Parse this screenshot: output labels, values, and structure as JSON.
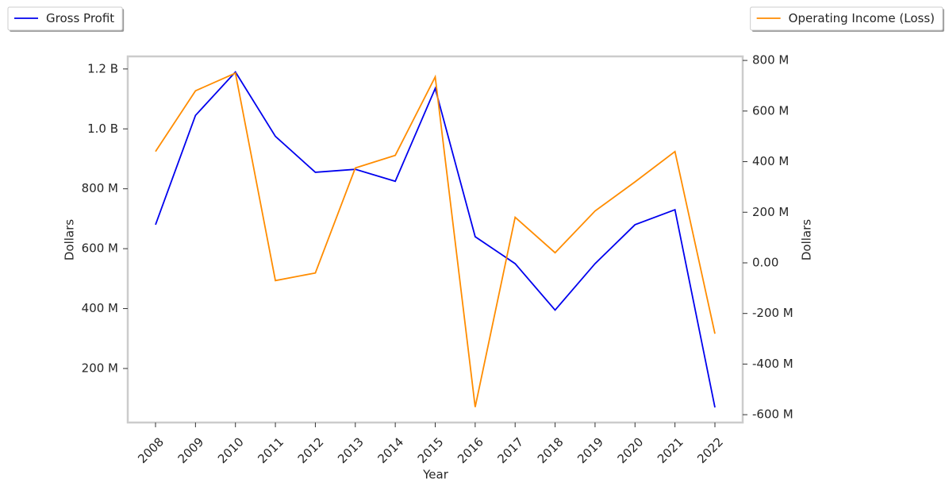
{
  "chart_data": {
    "type": "line",
    "x_label": "Year",
    "y_label": "Dollars",
    "y2_label": "Dollars",
    "categories": [
      "2008",
      "2009",
      "2010",
      "2011",
      "2012",
      "2013",
      "2014",
      "2015",
      "2016",
      "2017",
      "2018",
      "2019",
      "2020",
      "2021",
      "2022"
    ],
    "series": [
      {
        "name": "Gross Profit",
        "color": "#0000ee",
        "axis": "y",
        "values": [
          680000000,
          1045000000,
          1190000000,
          975000000,
          855000000,
          865000000,
          825000000,
          1135000000,
          640000000,
          550000000,
          395000000,
          550000000,
          680000000,
          730000000,
          70000000
        ]
      },
      {
        "name": "Operating Income (Loss)",
        "color": "#ff8c00",
        "axis": "y2",
        "values": [
          440000000,
          680000000,
          750000000,
          -70000000,
          -40000000,
          375000000,
          425000000,
          735000000,
          -570000000,
          180000000,
          40000000,
          205000000,
          320000000,
          440000000,
          -280000000
        ]
      }
    ],
    "ylim": [
      19600000,
      1242000000
    ],
    "yticks": [
      {
        "value": 200000000,
        "label": "200 M"
      },
      {
        "value": 400000000,
        "label": "400 M"
      },
      {
        "value": 600000000,
        "label": "600 M"
      },
      {
        "value": 800000000,
        "label": "800 M"
      },
      {
        "value": 1000000000,
        "label": "1.0 B"
      },
      {
        "value": 1200000000,
        "label": "1.2 B"
      }
    ],
    "y2lim": [
      -631000000,
      816000000
    ],
    "y2ticks": [
      {
        "value": -600000000,
        "label": "-600 M"
      },
      {
        "value": -400000000,
        "label": "-400 M"
      },
      {
        "value": -200000000,
        "label": "-200 M"
      },
      {
        "value": 0,
        "label": "0.00"
      },
      {
        "value": 200000000,
        "label": "200 M"
      },
      {
        "value": 400000000,
        "label": "400 M"
      },
      {
        "value": 600000000,
        "label": "600 M"
      },
      {
        "value": 800000000,
        "label": "800 M"
      }
    ],
    "grid": false
  }
}
